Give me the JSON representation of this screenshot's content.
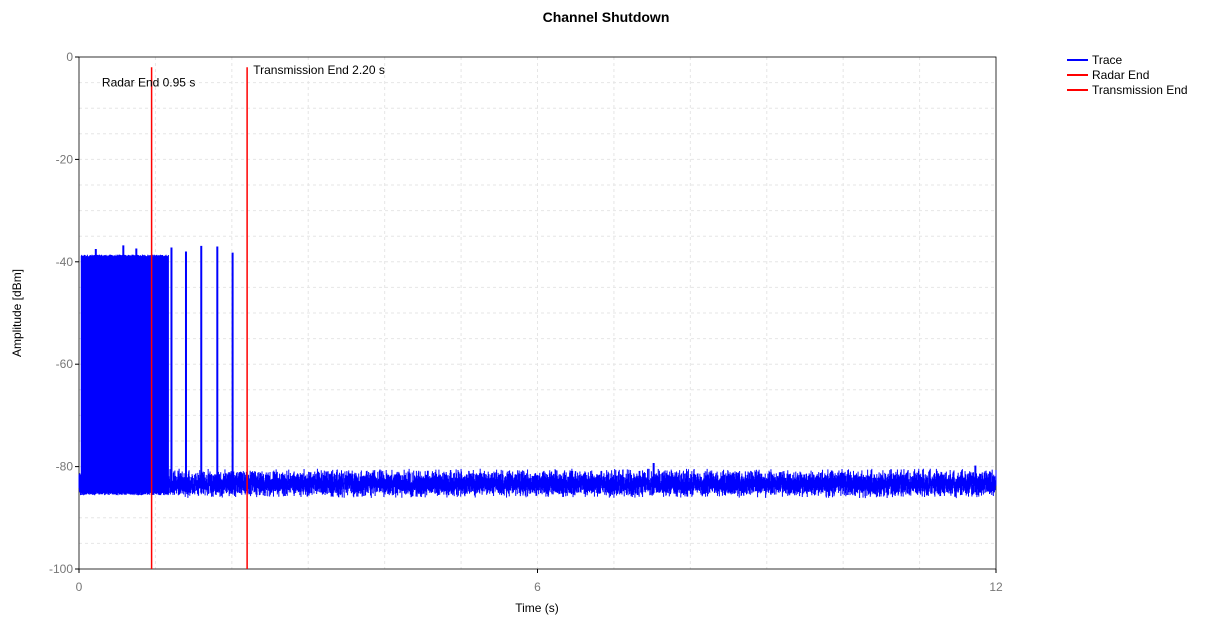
{
  "chart_data": {
    "type": "line",
    "title": "Channel Shutdown",
    "xlabel": "Time (s)",
    "ylabel": "Amplitude [dBm]",
    "xlim": [
      0,
      12
    ],
    "ylim": [
      -100,
      0
    ],
    "x_ticks": [
      "0",
      "6",
      "12"
    ],
    "y_ticks": [
      "0",
      "-20",
      "-40",
      "-60",
      "-80",
      "-100"
    ],
    "grid": true,
    "legend_position": "top-right",
    "series": [
      {
        "name": "Trace",
        "color": "#0000ff",
        "noise_floor_dbm": [
          -85,
          -81
        ],
        "active_band": {
          "x_start": 0.03,
          "x_end": 1.17,
          "top_dbm": -39,
          "bottom_dbm": -85
        },
        "peaks": [
          {
            "x": 0.22,
            "y": -37.5
          },
          {
            "x": 0.58,
            "y": -36.8
          },
          {
            "x": 0.75,
            "y": -37.4
          },
          {
            "x": 1.21,
            "y": -37.2
          },
          {
            "x": 1.4,
            "y": -38.0
          },
          {
            "x": 1.6,
            "y": -36.9
          },
          {
            "x": 1.81,
            "y": -37.0
          },
          {
            "x": 2.01,
            "y": -38.2
          },
          {
            "x": 7.52,
            "y": -79.3
          },
          {
            "x": 11.73,
            "y": -79.8
          }
        ]
      },
      {
        "name": "Radar End",
        "color": "#ff0000",
        "x": 0.95,
        "y_range": [
          -100,
          -2
        ]
      },
      {
        "name": "Transmission End",
        "color": "#ff0000",
        "x": 2.2,
        "y_range": [
          -100,
          -2
        ]
      }
    ],
    "annotations": [
      {
        "text": "Radar End 0.95 s",
        "x": 0.3,
        "y": -5
      },
      {
        "text": "Transmission End 2.20 s",
        "x": 2.28,
        "y": -2.5
      }
    ]
  }
}
